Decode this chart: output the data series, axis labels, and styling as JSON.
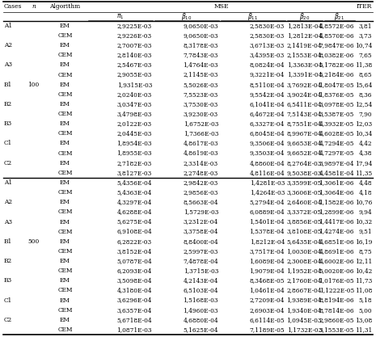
{
  "rows": [
    [
      "A1",
      "",
      "EM",
      "2,9225E-03",
      "9,0650E-03",
      "2,5830E-03",
      "1,2813E-04",
      "4,8572E-06",
      "3,81"
    ],
    [
      "",
      "",
      "CEM",
      "2,9226E-03",
      "9,0650E-03",
      "2,5830E-03",
      "1,2812E-04",
      "4,8570E-06",
      "3,73"
    ],
    [
      "A2",
      "",
      "EM",
      "2,7007E-03",
      "8,3178E-03",
      "3,6713E-03",
      "2,1419E-04",
      "7,9847E-06",
      "10,74"
    ],
    [
      "",
      "",
      "CEM",
      "2,8140E-03",
      "7,7843E-03",
      "3,4395E-03",
      "2,1553E-04",
      "8,0382E-06",
      "7,65"
    ],
    [
      "A3",
      "",
      "EM",
      "2,5467E-03",
      "1,4764E-03",
      "8,0824E-04",
      "1,3363E-04",
      "5,1782E-06",
      "11,38"
    ],
    [
      "",
      "",
      "CEM",
      "2,9055E-03",
      "2,1145E-03",
      "9,3221E-04",
      "1,3391E-04",
      "5,2184E-06",
      "8,65"
    ],
    [
      "B1",
      "100",
      "EM",
      "1,9315E-03",
      "5,5026E-03",
      "8,5110E-04",
      "3,7692E-04",
      "1,8047E-05",
      "15,64"
    ],
    [
      "",
      "",
      "CEM",
      "2,0240E-03",
      "7,5523E-03",
      "9,5542E-04",
      "3,9024E-04",
      "1,8376E-05",
      "8,36"
    ],
    [
      "B2",
      "",
      "EM",
      "3,0347E-03",
      "3,7530E-03",
      "6,1041E-04",
      "6,5411E-04",
      "3,0978E-05",
      "12,54"
    ],
    [
      "",
      "",
      "CEM",
      "3,4798E-03",
      "3,9230E-03",
      "6,4672E-04",
      "7,5143E-04",
      "3,5387E-05",
      "7,90"
    ],
    [
      "B3",
      "",
      "EM",
      "2,0122E-03",
      "1,6752E-03",
      "6,3327E-04",
      "8,7551E-04",
      "4,3932E-05",
      "12,03"
    ],
    [
      "",
      "",
      "CEM",
      "2,0445E-03",
      "1,7366E-03",
      "6,8045E-04",
      "8,9967E-04",
      "4,6028E-05",
      "10,34"
    ],
    [
      "C1",
      "",
      "EM",
      "1,8954E-03",
      "4,8617E-03",
      "9,3506E-04",
      "9,6653E-04",
      "4,7294E-05",
      "4,42"
    ],
    [
      "",
      "",
      "CEM",
      "1,8955E-03",
      "4,8619E-03",
      "9,3503E-04",
      "9,6652E-04",
      "4,7297E-05",
      "4,38"
    ],
    [
      "C2",
      "",
      "EM",
      "2,7182E-03",
      "2,3314E-03",
      "4,8860E-04",
      "8,2764E-03",
      "3,9897E-04",
      "17,94"
    ],
    [
      "",
      "",
      "CEM",
      "3,8127E-03",
      "2,2748E-03",
      "4,8116E-04",
      "9,5038E-03",
      "4,4581E-04",
      "11,35"
    ],
    [
      "A1",
      "",
      "EM",
      "5,4356E-04",
      "2,9842E-03",
      "1,4281E-03",
      "3,3599E-05",
      "1,3061E-06",
      "4,48"
    ],
    [
      "",
      "",
      "CEM",
      "5,4363E-04",
      "2,9856E-03",
      "1,4264E-03",
      "3,3606E-05",
      "1,3064E-06",
      "4,18"
    ],
    [
      "A2",
      "",
      "EM",
      "4,3297E-04",
      "8,5663E-04",
      "5,2794E-04",
      "2,6460E-04",
      "1,1582E-06",
      "10,76"
    ],
    [
      "",
      "",
      "CEM",
      "4,6288E-04",
      "1,5729E-03",
      "6,0889E-04",
      "3,3372E-05",
      "1,2899E-06",
      "9,94"
    ],
    [
      "A3",
      "",
      "EM",
      "5,6275E-04",
      "3,2312E-04",
      "1,5401E-04",
      "3,8856E-05",
      "1,4417E-06",
      "10,32"
    ],
    [
      "",
      "",
      "CEM",
      "6,9108E-04",
      "3,3758E-04",
      "1,5378E-04",
      "3,8108E-05",
      "1,4274E-06",
      "9,51"
    ],
    [
      "B1",
      "500",
      "EM",
      "6,2822E-03",
      "8,8400E-04",
      "1,8212E-04",
      "5,6435E-04",
      "4,6851E-06",
      "16,19"
    ],
    [
      "",
      "",
      "CEM",
      "3,8152E-04",
      "2,5997E-03",
      "3,7517E-04",
      "1,0030E-04",
      "4,8691E-06",
      "8,75"
    ],
    [
      "B2",
      "",
      "EM",
      "5,0787E-04",
      "7,4878E-04",
      "1,6089E-04",
      "2,3008E-04",
      "4,6002E-06",
      "12,11"
    ],
    [
      "",
      "",
      "CEM",
      "6,2093E-04",
      "1,3715E-03",
      "1,9079E-04",
      "1,1952E-04",
      "5,0020E-06",
      "10,42"
    ],
    [
      "B3",
      "",
      "EM",
      "3,5098E-04",
      "4,2143E-04",
      "8,3468E-05",
      "2,1760E-04",
      "1,0176E-05",
      "11,73"
    ],
    [
      "",
      "",
      "CEM",
      "4,3180E-04",
      "6,5103E-04",
      "1,0461E-04",
      "2,8667E-04",
      "1,1222E-05",
      "11,08"
    ],
    [
      "C1",
      "",
      "EM",
      "3,6296E-04",
      "1,5168E-03",
      "2,7209E-04",
      "1,9389E-04",
      "8,8194E-06",
      "5,18"
    ],
    [
      "",
      "",
      "CEM",
      "3,6357E-04",
      "1,4960E-03",
      "2,6903E-04",
      "1,9340E-04",
      "8,7814E-06",
      "5,00"
    ],
    [
      "C2",
      "",
      "EM",
      "5,6718E-04",
      "4,6880E-04",
      "6,6114E-05",
      "1,0945E-03",
      "2,9860E-05",
      "13,08"
    ],
    [
      "",
      "",
      "CEM",
      "1,0871E-03",
      "5,1625E-04",
      "7,1189E-05",
      "1,1732E-03",
      "3,1553E-05",
      "11,31"
    ]
  ],
  "bg_color": "#ffffff",
  "text_color": "#000000",
  "line_color": "#000000"
}
